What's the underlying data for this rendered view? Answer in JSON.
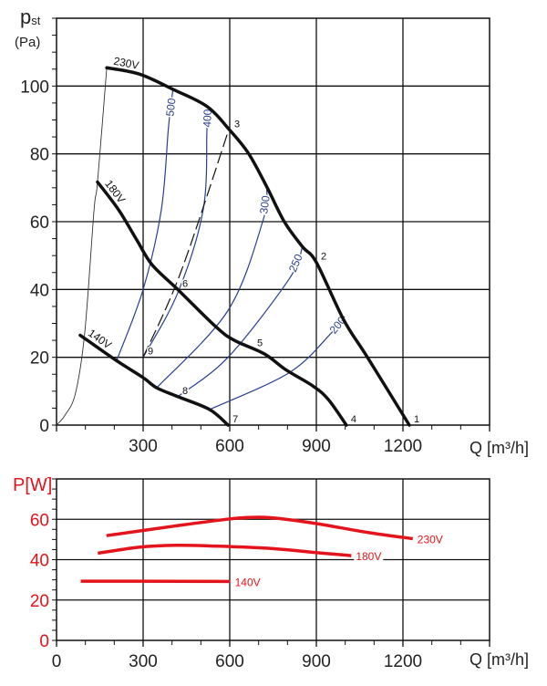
{
  "chart_data": [
    {
      "type": "line",
      "title": "",
      "ylabel_main": "p",
      "ylabel_sub": "st",
      "ylabel_unit": "(Pa)",
      "xlabel": "Q [m³/h]",
      "xlim": [
        0,
        1500
      ],
      "ylim": [
        0,
        120
      ],
      "xticks": [
        "300",
        "600",
        "900",
        "1200"
      ],
      "yticks": [
        "0",
        "20",
        "40",
        "60",
        "80",
        "100"
      ],
      "grid": true,
      "colors": {
        "curves": "#111111",
        "iso": "#2a3f8f",
        "limit": "#333333"
      },
      "series": [
        {
          "name": "230V",
          "points": [
            [
              174,
              105.4
            ],
            [
              288,
              103.5
            ],
            [
              404,
              99
            ],
            [
              521,
              94
            ],
            [
              600,
              87
            ],
            [
              666,
              80
            ],
            [
              730,
              70
            ],
            [
              789,
              60
            ],
            [
              852,
              52.6
            ],
            [
              900,
              48
            ],
            [
              995,
              31
            ],
            [
              1077,
              20
            ],
            [
              1222,
              0
            ]
          ]
        },
        {
          "name": "180V",
          "points": [
            [
              142,
              71.7
            ],
            [
              215,
              63.5
            ],
            [
              278,
              54.6
            ],
            [
              331,
              47.3
            ],
            [
              420,
              40
            ],
            [
              552,
              29
            ],
            [
              616,
              25
            ],
            [
              720,
              21
            ],
            [
              793,
              16.4
            ],
            [
              887,
              11.6
            ],
            [
              941,
              7.6
            ],
            [
              1004,
              0
            ]
          ]
        },
        {
          "name": "140V",
          "points": [
            [
              82,
              26.5
            ],
            [
              208,
              19
            ],
            [
              300,
              14
            ],
            [
              347,
              11
            ],
            [
              420,
              8.4
            ],
            [
              530,
              4.6
            ],
            [
              594,
              0
            ]
          ]
        }
      ],
      "iso_curves": [
        {
          "name": "500",
          "points": [
            [
              208,
              19
            ],
            [
              300,
              40
            ],
            [
              363,
              63.5
            ],
            [
              388,
              88
            ],
            [
              404,
              99.5
            ]
          ]
        },
        {
          "name": "400",
          "points": [
            [
              300,
              20
            ],
            [
              420,
              39
            ],
            [
              508,
              63.5
            ],
            [
              521,
              87
            ],
            [
              524,
              94
            ]
          ]
        },
        {
          "name": "300",
          "points": [
            [
              347,
              11
            ],
            [
              594,
              33.8
            ],
            [
              714,
              60
            ],
            [
              729,
              70
            ]
          ]
        },
        {
          "name": "250",
          "points": [
            [
              420,
              8.4
            ],
            [
              594,
              20
            ],
            [
              805,
              43
            ],
            [
              852,
              52.6
            ]
          ]
        },
        {
          "name": "200",
          "points": [
            [
              530,
              4.6
            ],
            [
              805,
              15.4
            ],
            [
              950,
              27
            ],
            [
              998,
              32
            ]
          ]
        }
      ],
      "limit_curve": [
        [
          0,
          0
        ],
        [
          30,
          3
        ],
        [
          66,
          9.5
        ],
        [
          98,
          27.5
        ],
        [
          130,
          63.5
        ],
        [
          142,
          71.7
        ],
        [
          174,
          105.4
        ]
      ],
      "dashed_line": [
        [
          300,
          20
        ],
        [
          430,
          45
        ],
        [
          600,
          88
        ]
      ],
      "operating_points": [
        {
          "label": "1",
          "q": 1222,
          "p": 0
        },
        {
          "label": "2",
          "q": 900,
          "p": 48
        },
        {
          "label": "3",
          "q": 600,
          "p": 87
        },
        {
          "label": "4",
          "q": 1004,
          "p": 0
        },
        {
          "label": "5",
          "q": 679,
          "p": 22.4
        },
        {
          "label": "6",
          "q": 420,
          "p": 40
        },
        {
          "label": "7",
          "q": 594,
          "p": 0
        },
        {
          "label": "8",
          "q": 420,
          "p": 8.4
        },
        {
          "label": "9",
          "q": 300,
          "p": 20
        }
      ]
    },
    {
      "type": "line",
      "title": "",
      "ylabel": "P[W]",
      "xlabel": "Q [m³/h]",
      "xlim": [
        0,
        1500
      ],
      "ylim": [
        0,
        80
      ],
      "xticks": [
        "0",
        "300",
        "600",
        "900",
        "1200"
      ],
      "yticks": [
        "0",
        "20",
        "40",
        "60"
      ],
      "grid": true,
      "color": "#e3141b",
      "series": [
        {
          "name": "230V",
          "points": [
            [
              173,
              51.9
            ],
            [
              411,
              56.7
            ],
            [
              602,
              60.2
            ],
            [
              703,
              61
            ],
            [
              777,
              60.3
            ],
            [
              899,
              57.9
            ],
            [
              1082,
              53.4
            ],
            [
              1234,
              50.4
            ]
          ]
        },
        {
          "name": "180V",
          "points": [
            [
              143,
              43.2
            ],
            [
              289,
              46.2
            ],
            [
              411,
              47.1
            ],
            [
              533,
              46.8
            ],
            [
              728,
              45.7
            ],
            [
              899,
              43.5
            ],
            [
              1021,
              42
            ]
          ]
        },
        {
          "name": "140V",
          "points": [
            [
              84,
              29.3
            ],
            [
              289,
              29.3
            ],
            [
              602,
              29.2
            ]
          ]
        }
      ]
    }
  ]
}
